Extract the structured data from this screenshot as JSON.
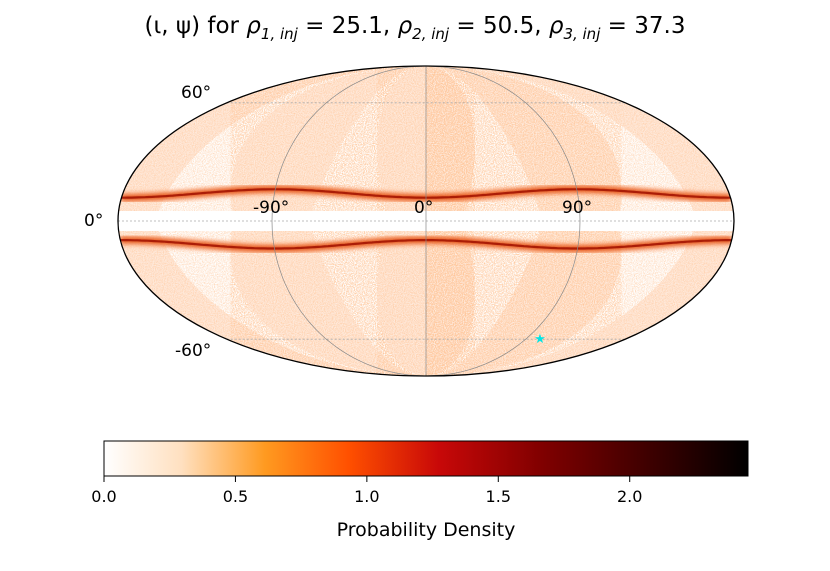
{
  "chart_data": {
    "type": "heatmap",
    "projection": "mollweide",
    "title_parts": {
      "lead": "(ι, ψ) for ",
      "rho1_sym": "ρ",
      "rho1_sub": "1, inj",
      "rho1_val": " = 25.1, ",
      "rho2_sym": "ρ",
      "rho2_sub": "2, inj",
      "rho2_val": " = 50.5, ",
      "rho3_sym": "ρ",
      "rho3_sub": "3, inj",
      "rho3_val": " = 37.3"
    },
    "lat_labels": [
      "60°",
      "0°",
      "-60°"
    ],
    "lon_labels": [
      "-90°",
      "0°",
      "90°"
    ],
    "grid": true,
    "injection_marker": {
      "lon_deg": 75,
      "lat_deg": -60,
      "color": "#00e5e5",
      "symbol": "★"
    },
    "density_bands": [
      {
        "lat_center_deg": 15,
        "note": "upper ridge"
      },
      {
        "lat_center_deg": -13,
        "note": "lower ridge"
      }
    ],
    "colorbar": {
      "label": "Probability Density",
      "range": [
        0,
        2.45
      ],
      "ticks": [
        "0.0",
        "0.5",
        "1.0",
        "1.5",
        "2.0"
      ],
      "colormap": "gist_heat_r",
      "colors": [
        "#ffffff",
        "#ffd0a0",
        "#ff8c00",
        "#e02000",
        "#900000",
        "#400000",
        "#000000"
      ]
    }
  }
}
